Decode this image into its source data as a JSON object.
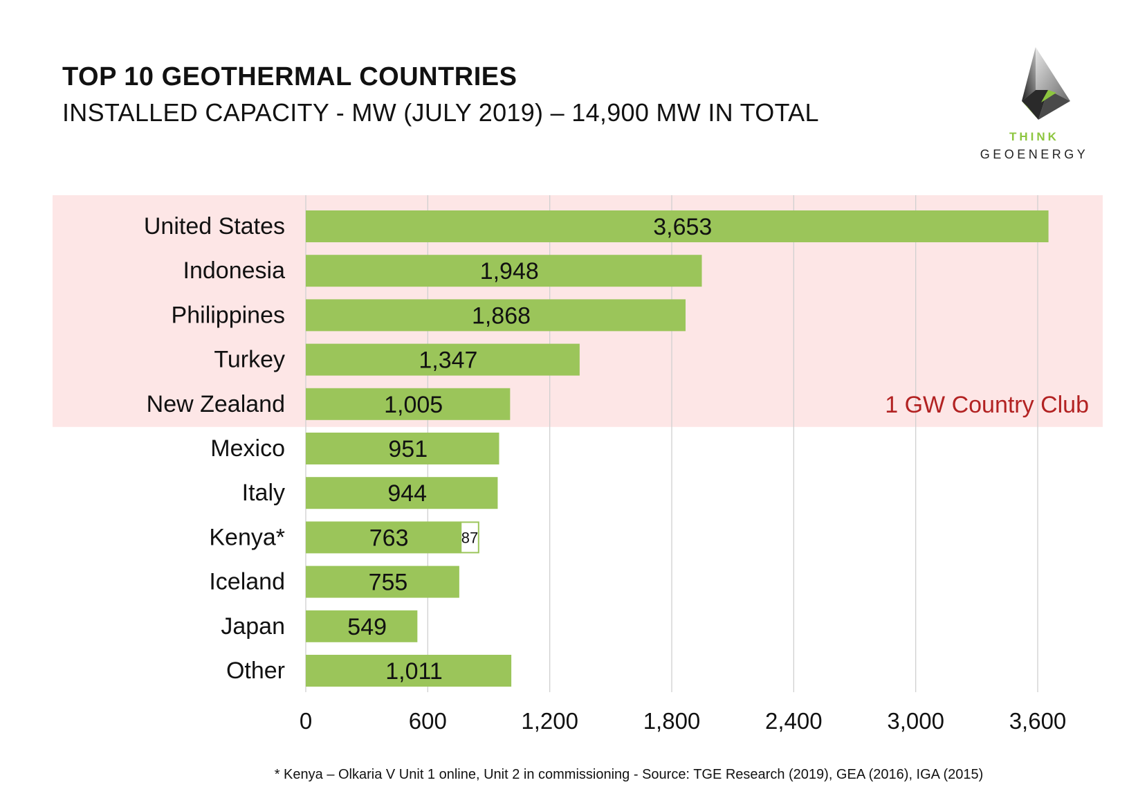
{
  "header": {
    "title": "TOP 10 GEOTHERMAL COUNTRIES",
    "subtitle": "INSTALLED CAPACITY - MW (JULY 2019) – 14,900 MW IN TOTAL"
  },
  "logo": {
    "line1": "THINK",
    "line2": "GEOENERGY",
    "accent_color": "#8dc63f"
  },
  "chart_data": {
    "type": "bar",
    "orientation": "horizontal",
    "categories": [
      "United States",
      "Indonesia",
      "Philippines",
      "Turkey",
      "New Zealand",
      "Mexico",
      "Italy",
      "Kenya*",
      "Iceland",
      "Japan",
      "Other"
    ],
    "values": [
      3653,
      1948,
      1868,
      1347,
      1005,
      951,
      944,
      763,
      755,
      549,
      1011
    ],
    "value_labels": [
      "3,653",
      "1,948",
      "1,868",
      "1,347",
      "1,005",
      "951",
      "944",
      "763",
      "755",
      "549",
      "1,011"
    ],
    "extra_segment": {
      "category": "Kenya*",
      "value": 87,
      "label": "87"
    },
    "xlim": [
      0,
      3600
    ],
    "x_ticks": [
      0,
      600,
      1200,
      1800,
      2400,
      3000,
      3600
    ],
    "x_tick_labels": [
      "0",
      "600",
      "1,200",
      "1,800",
      "2,400",
      "3,000",
      "3,600"
    ],
    "grid": "vertical",
    "highlight": {
      "label": "1 GW Country Club",
      "categories": [
        "United States",
        "Indonesia",
        "Philippines",
        "Turkey",
        "New Zealand"
      ],
      "color": "#fde6e6",
      "text_color": "#b22222"
    },
    "bar_color": "#9bc55a",
    "grid_color": "#d0d0d0"
  },
  "footnote": "* Kenya – Olkaria V Unit 1 online, Unit 2 in commissioning -  Source: TGE Research (2019), GEA (2016), IGA (2015)"
}
